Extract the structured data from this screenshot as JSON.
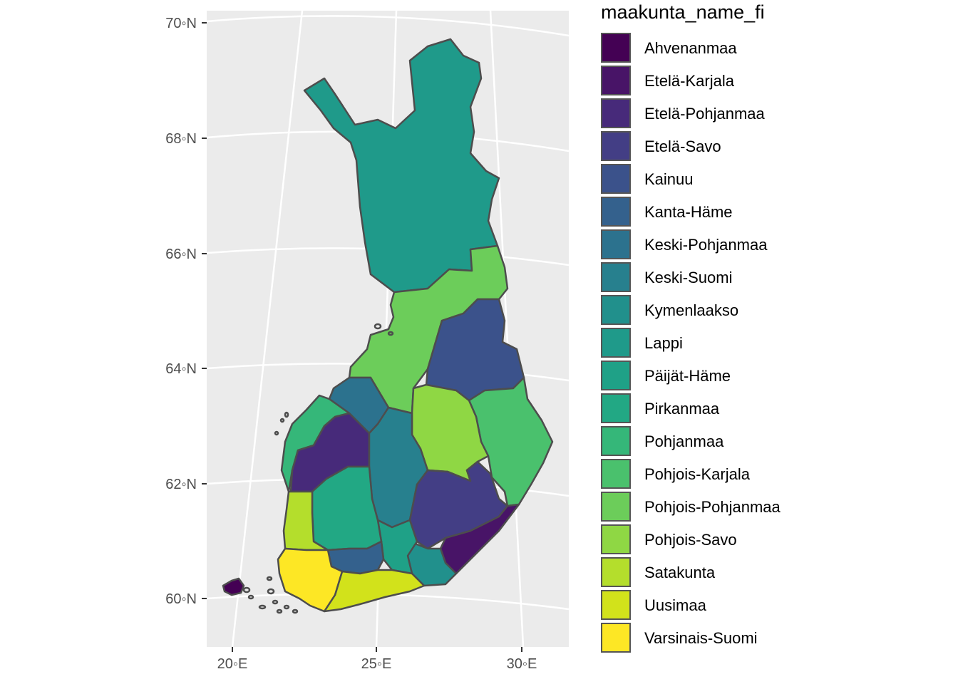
{
  "map": {
    "y_axis_labels": [
      "70◦N",
      "68◦N",
      "66◦N",
      "64◦N",
      "62◦N",
      "60◦N"
    ],
    "x_axis_labels": [
      "20◦E",
      "25◦E",
      "30◦E"
    ],
    "background_color": "#ebebeb",
    "border_color": "#4d4d4d"
  },
  "legend": {
    "title": "maakunta_name_fi",
    "items": [
      {
        "label": "Ahvenanmaa",
        "color": "#440154"
      },
      {
        "label": "Etelä-Karjala",
        "color": "#481467"
      },
      {
        "label": "Etelä-Pohjanmaa",
        "color": "#472a7a"
      },
      {
        "label": "Etelä-Savo",
        "color": "#433e85"
      },
      {
        "label": "Kainuu",
        "color": "#3b528b"
      },
      {
        "label": "Kanta-Häme",
        "color": "#34618d"
      },
      {
        "label": "Keski-Pohjanmaa",
        "color": "#2c728e"
      },
      {
        "label": "Keski-Suomi",
        "color": "#27808e"
      },
      {
        "label": "Kymenlaakso",
        "color": "#21908c"
      },
      {
        "label": "Lappi",
        "color": "#1f9a8a"
      },
      {
        "label": "Päijät-Häme",
        "color": "#1fa187"
      },
      {
        "label": "Pirkanmaa",
        "color": "#22a884"
      },
      {
        "label": "Pohjanmaa",
        "color": "#35b779"
      },
      {
        "label": "Pohjois-Karjala",
        "color": "#4ac16d"
      },
      {
        "label": "Pohjois-Pohjanmaa",
        "color": "#6ccd5a"
      },
      {
        "label": "Pohjois-Savo",
        "color": "#8fd744"
      },
      {
        "label": "Satakunta",
        "color": "#b4de2c"
      },
      {
        "label": "Uusimaa",
        "color": "#d2e21b"
      },
      {
        "label": "Varsinais-Suomi",
        "color": "#fde725"
      }
    ]
  }
}
